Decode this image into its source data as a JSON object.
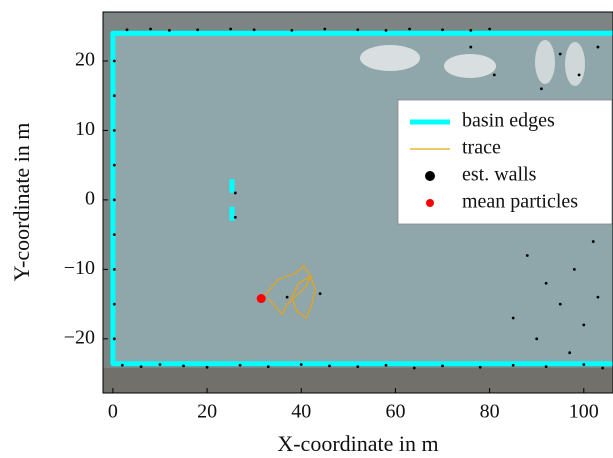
{
  "chart_data": {
    "type": "scatter",
    "xlabel": "X-coordinate in m",
    "ylabel": "Y-coordinate in m",
    "xlim": [
      -2.1,
      106.2
    ],
    "ylim": [
      -27.8,
      27.05
    ],
    "xticks": [
      0,
      20,
      40,
      60,
      80,
      100
    ],
    "yticks": [
      {
        "value": -20,
        "label": "−20"
      },
      {
        "value": -10,
        "label": "−10"
      },
      0,
      10,
      20
    ],
    "legend": "upper right",
    "series": [
      {
        "name": "basin edges",
        "type": "line",
        "color": "#00ffff",
        "x": [
          106.2,
          0,
          0,
          106.2,
          null,
          25.3,
          25.3,
          null,
          25.3,
          25.3
        ],
        "y": [
          24,
          24,
          -23.6,
          -23.6,
          null,
          3,
          1,
          null,
          -1,
          -3
        ]
      },
      {
        "name": "trace",
        "type": "line",
        "color": "#e8a317",
        "x": [
          32,
          35,
          39,
          40.5,
          42,
          43,
          42,
          41,
          39,
          38,
          39.5,
          42,
          41,
          37,
          36,
          33
        ],
        "y": [
          -14,
          -11.5,
          -10.5,
          -9.5,
          -11,
          -13,
          -15.5,
          -17,
          -16,
          -14,
          -12,
          -11,
          -12.5,
          -15,
          -16.5,
          -14.2
        ]
      },
      {
        "name": "est. walls",
        "type": "scatter",
        "color": "#000000",
        "x": [
          3,
          8,
          12,
          18,
          25,
          30,
          38,
          45,
          52,
          58,
          63,
          70,
          76,
          80,
          2,
          6,
          10,
          15,
          20,
          27,
          33,
          40,
          46,
          52,
          58,
          64,
          70,
          78,
          85,
          92,
          100,
          104,
          0.3,
          0.3,
          0.3,
          0.3,
          0.3,
          0.3,
          0.3,
          0.3,
          0.3,
          26,
          26,
          88,
          92,
          95,
          98,
          100,
          103,
          90,
          97,
          102,
          85,
          99,
          103,
          95,
          91,
          37,
          44,
          76,
          81
        ],
        "y": [
          24.5,
          24.6,
          24.4,
          24.5,
          24.6,
          24.5,
          24.4,
          24.6,
          24.5,
          24.4,
          24.6,
          24.5,
          24.4,
          24.6,
          -23.8,
          -24,
          -23.7,
          -23.9,
          -24.1,
          -23.8,
          -24,
          -23.7,
          -23.9,
          -24,
          -23.8,
          -24.2,
          -23.9,
          -24.1,
          -23.8,
          -24,
          -23.7,
          -24.2,
          20,
          15,
          10,
          5,
          0,
          -5,
          -10,
          -15,
          -20,
          1,
          -2.5,
          -8,
          -12,
          -15,
          -10,
          -18,
          -14,
          -20,
          -22,
          -6,
          -17,
          18,
          22,
          21,
          16,
          -14,
          -13.5,
          22,
          18
        ]
      },
      {
        "name": "mean particles",
        "type": "scatter",
        "color": "#ff0000",
        "x": [
          31.5
        ],
        "y": [
          -14.2
        ]
      }
    ]
  }
}
